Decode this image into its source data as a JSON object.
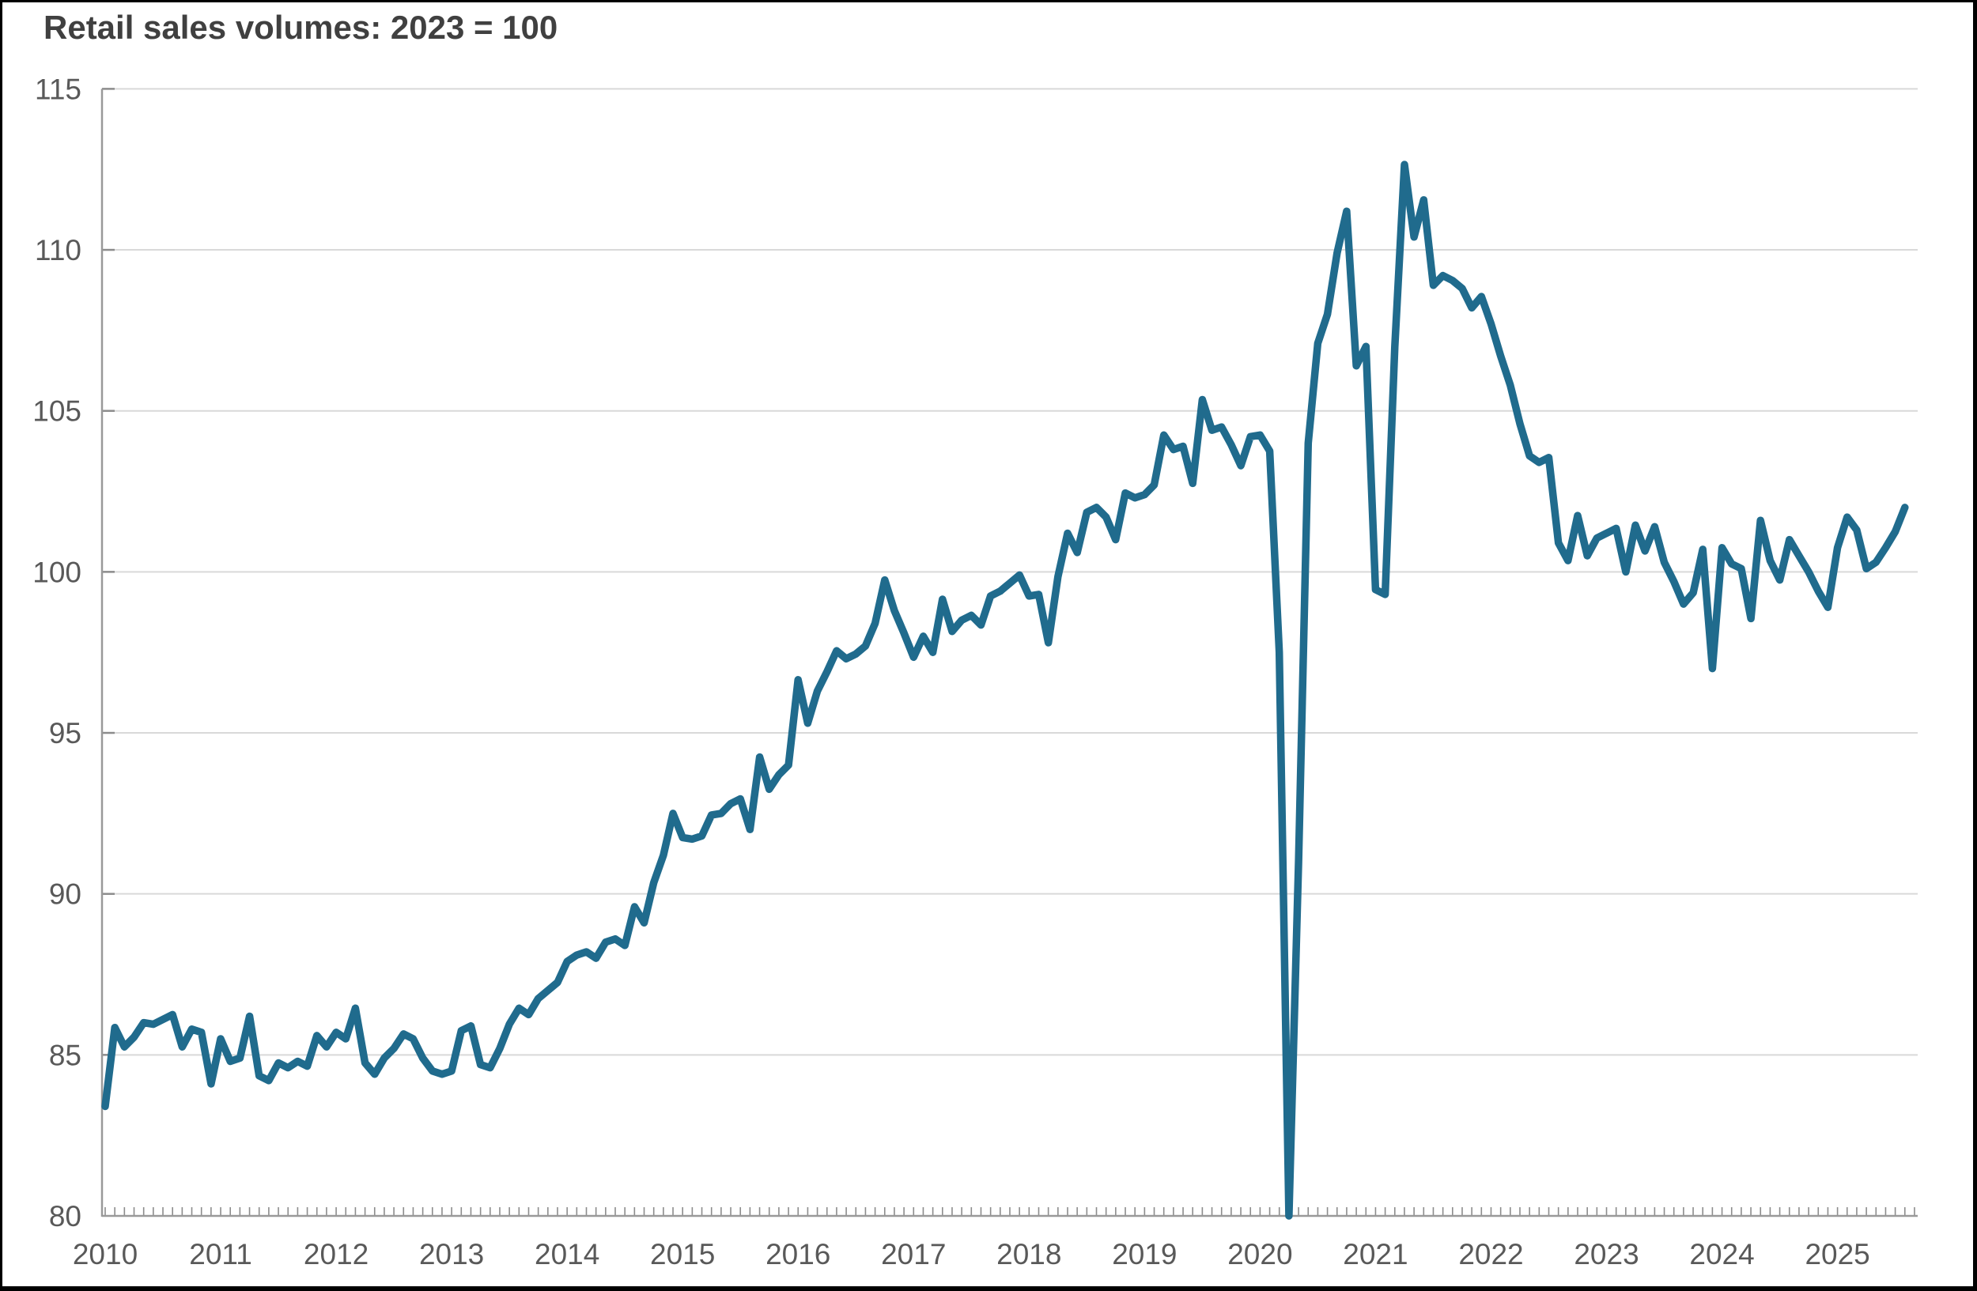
{
  "chart": {
    "title": "Retail sales volumes: 2023 = 100"
  },
  "chart_data": {
    "type": "line",
    "title": "Retail sales volumes: 2023 = 100",
    "x_unit": "month",
    "x_start": "2010-01",
    "x_end": "2025-08",
    "x_tick_labels": [
      "2010",
      "2011",
      "2012",
      "2013",
      "2014",
      "2015",
      "2016",
      "2017",
      "2018",
      "2019",
      "2020",
      "2021",
      "2022",
      "2023",
      "2024",
      "2025"
    ],
    "y_tick_labels": [
      80,
      85,
      90,
      95,
      100,
      105,
      110,
      115
    ],
    "ylim": [
      80,
      115
    ],
    "grid": "horizontal",
    "legend": "none",
    "line_color": "#206b8d",
    "grid_color": "#d9d9d9",
    "axis_color": "#999999",
    "tick_color": "#8c8c8c",
    "label_color": "#595959",
    "title_color": "#404040",
    "series": [
      {
        "name": "retail_sales_volume_index",
        "values": [
          83.4,
          85.85,
          85.25,
          85.55,
          86.0,
          85.95,
          86.1,
          86.25,
          85.25,
          85.8,
          85.7,
          84.1,
          85.5,
          84.8,
          84.9,
          86.2,
          84.35,
          84.2,
          84.75,
          84.6,
          84.8,
          84.65,
          85.6,
          85.25,
          85.7,
          85.5,
          86.45,
          84.75,
          84.4,
          84.9,
          85.2,
          85.65,
          85.5,
          84.9,
          84.5,
          84.4,
          84.5,
          85.75,
          85.9,
          84.7,
          84.6,
          85.2,
          85.95,
          86.45,
          86.25,
          86.75,
          87.0,
          87.25,
          87.9,
          88.1,
          88.2,
          88.0,
          88.5,
          88.6,
          88.4,
          89.6,
          89.1,
          90.35,
          91.2,
          92.5,
          91.75,
          91.7,
          91.8,
          92.45,
          92.5,
          92.8,
          92.95,
          92.0,
          94.25,
          93.25,
          93.7,
          94.0,
          96.65,
          95.3,
          96.3,
          96.9,
          97.55,
          97.3,
          97.45,
          97.7,
          98.4,
          99.75,
          98.8,
          98.1,
          97.35,
          98.0,
          97.5,
          99.15,
          98.15,
          98.5,
          98.65,
          98.35,
          99.25,
          99.4,
          99.65,
          99.9,
          99.25,
          99.3,
          97.8,
          99.85,
          101.2,
          100.6,
          101.85,
          102.0,
          101.7,
          101.0,
          102.45,
          102.3,
          102.4,
          102.7,
          104.25,
          103.8,
          103.9,
          102.75,
          105.35,
          104.4,
          104.5,
          103.95,
          103.3,
          104.2,
          104.25,
          103.75,
          97.5,
          80.0,
          91.0,
          104.0,
          107.1,
          108.0,
          109.9,
          111.2,
          106.4,
          107.0,
          99.45,
          99.3,
          107.0,
          112.65,
          110.4,
          111.55,
          108.9,
          109.2,
          109.05,
          108.8,
          108.2,
          108.55,
          107.7,
          106.7,
          105.8,
          104.6,
          103.6,
          103.4,
          103.55,
          100.9,
          100.35,
          101.75,
          100.5,
          101.05,
          101.2,
          101.35,
          100.0,
          101.45,
          100.65,
          101.4,
          100.3,
          99.7,
          99.0,
          99.35,
          100.7,
          97.0,
          100.75,
          100.25,
          100.1,
          98.55,
          101.6,
          100.35,
          99.75,
          101.0,
          100.5,
          100.0,
          99.4,
          98.9,
          100.75,
          101.7,
          101.3,
          100.1,
          100.3,
          100.75,
          101.25,
          102.0
        ]
      }
    ]
  }
}
